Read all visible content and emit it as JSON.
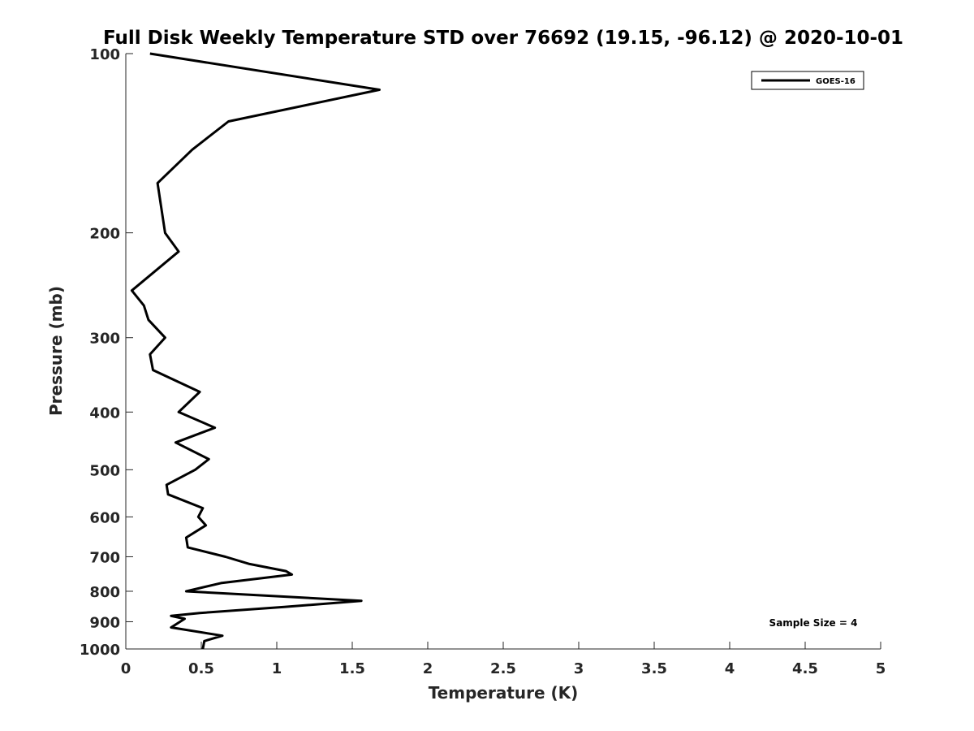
{
  "chart_data": {
    "type": "line",
    "title": "Full Disk Weekly Temperature STD over 76692 (19.15, -96.12) @ 2020-10-01",
    "xlabel": "Temperature (K)",
    "ylabel": "Pressure (mb)",
    "xlim": [
      0,
      5
    ],
    "ylim": [
      100,
      1000
    ],
    "yscale": "log",
    "y_reversed": true,
    "x_ticks": [
      0,
      0.5,
      1,
      1.5,
      2,
      2.5,
      3,
      3.5,
      4,
      4.5,
      5
    ],
    "x_tick_labels": [
      "0",
      "0.5",
      "1",
      "1.5",
      "2",
      "2.5",
      "3",
      "3.5",
      "4",
      "4.5",
      "5"
    ],
    "y_ticks": [
      100,
      200,
      300,
      400,
      500,
      600,
      700,
      800,
      900,
      1000
    ],
    "y_tick_labels": [
      "100",
      "200",
      "300",
      "400",
      "500",
      "600",
      "700",
      "800",
      "900",
      "1000"
    ],
    "grid": false,
    "legend_position": "top-right",
    "series": [
      {
        "name": "GOES-16",
        "color": "#000000",
        "x": [
          0.16,
          1.68,
          0.68,
          0.44,
          0.21,
          0.26,
          0.35,
          0.04,
          0.12,
          0.15,
          0.26,
          0.16,
          0.18,
          0.49,
          0.35,
          0.59,
          0.33,
          0.55,
          0.46,
          0.27,
          0.28,
          0.51,
          0.48,
          0.53,
          0.4,
          0.41,
          0.66,
          0.82,
          1.06,
          1.1,
          0.63,
          0.4,
          1.56,
          1.05,
          0.49,
          0.3,
          0.39,
          0.3,
          0.64,
          0.52,
          0.51
        ],
        "y": [
          100,
          115,
          130,
          145,
          165,
          200,
          215,
          250,
          265,
          280,
          300,
          320,
          340,
          370,
          400,
          425,
          450,
          480,
          500,
          530,
          550,
          580,
          600,
          620,
          650,
          675,
          700,
          720,
          740,
          750,
          775,
          800,
          830,
          850,
          870,
          880,
          890,
          920,
          950,
          970,
          1000
        ]
      }
    ],
    "annotations": [
      "Sample Size = 4"
    ]
  }
}
